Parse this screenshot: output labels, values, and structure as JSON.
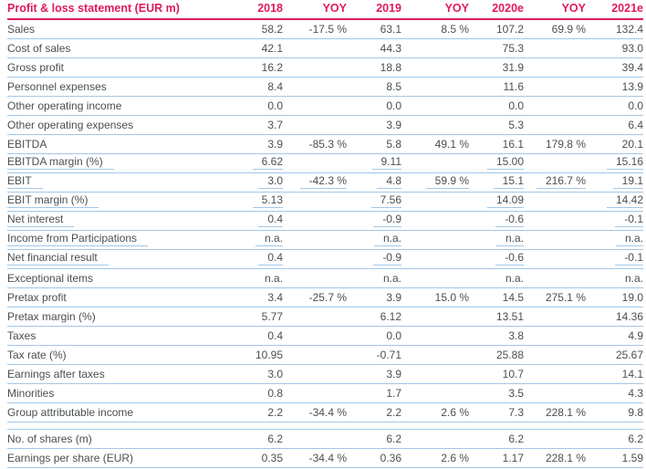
{
  "table": {
    "title": "Profit & loss statement (EUR m)",
    "columns": [
      "2018",
      "YOY",
      "2019",
      "YOY",
      "2020e",
      "YOY",
      "2021e"
    ],
    "colors": {
      "accent": "#e0195c",
      "text": "#4a4f52",
      "line": "#a2c7e7"
    },
    "rows": [
      {
        "label": "Sales",
        "values": [
          "58.2",
          "-17.5 %",
          "63.1",
          "8.5 %",
          "107.2",
          "69.9 %",
          "132.4"
        ],
        "underline": false,
        "section": 1
      },
      {
        "label": "Cost of sales",
        "values": [
          "42.1",
          "",
          "44.3",
          "",
          "75.3",
          "",
          "93.0"
        ],
        "underline": false,
        "section": 1
      },
      {
        "label": "Gross profit",
        "values": [
          "16.2",
          "",
          "18.8",
          "",
          "31.9",
          "",
          "39.4"
        ],
        "underline": false,
        "section": 1
      },
      {
        "label": "Personnel expenses",
        "values": [
          "8.4",
          "",
          "8.5",
          "",
          "11.6",
          "",
          "13.9"
        ],
        "underline": false,
        "section": 1
      },
      {
        "label": "Other operating income",
        "values": [
          "0.0",
          "",
          "0.0",
          "",
          "0.0",
          "",
          "0.0"
        ],
        "underline": false,
        "section": 1
      },
      {
        "label": "Other operating expenses",
        "values": [
          "3.7",
          "",
          "3.9",
          "",
          "5.3",
          "",
          "6.4"
        ],
        "underline": false,
        "section": 1
      },
      {
        "label": "EBITDA",
        "values": [
          "3.9",
          "-85.3 %",
          "5.8",
          "49.1 %",
          "16.1",
          "179.8 %",
          "20.1"
        ],
        "underline": false,
        "section": 1
      },
      {
        "label": "EBITDA margin (%)",
        "values": [
          "6.62",
          "",
          "9.11",
          "",
          "15.00",
          "",
          "15.16"
        ],
        "underline": true,
        "section": 1
      },
      {
        "label": "EBIT",
        "values": [
          "3.0",
          "-42.3 %",
          "4.8",
          "59.9 %",
          "15.1",
          "216.7 %",
          "19.1"
        ],
        "underline": true,
        "section": 1
      },
      {
        "label": "EBIT margin (%)",
        "values": [
          "5.13",
          "",
          "7.56",
          "",
          "14.09",
          "",
          "14.42"
        ],
        "underline": true,
        "section": 1
      },
      {
        "label": "Net interest",
        "values": [
          "0.4",
          "",
          "-0.9",
          "",
          "-0.6",
          "",
          "-0.1"
        ],
        "underline": true,
        "section": 1
      },
      {
        "label": "Income from Participations",
        "values": [
          "n.a.",
          "",
          "n.a.",
          "",
          "n.a.",
          "",
          "n.a."
        ],
        "underline": true,
        "section": 1
      },
      {
        "label": "Net financial result",
        "values": [
          "0.4",
          "",
          "-0.9",
          "",
          "-0.6",
          "",
          "-0.1"
        ],
        "underline": true,
        "section": 1
      },
      {
        "label": "Exceptional items",
        "values": [
          "n.a.",
          "",
          "n.a.",
          "",
          "n.a.",
          "",
          "n.a."
        ],
        "underline": false,
        "section": 1
      },
      {
        "label": "Pretax profit",
        "values": [
          "3.4",
          "-25.7 %",
          "3.9",
          "15.0 %",
          "14.5",
          "275.1 %",
          "19.0"
        ],
        "underline": false,
        "section": 1
      },
      {
        "label": "Pretax margin (%)",
        "values": [
          "5.77",
          "",
          "6.12",
          "",
          "13.51",
          "",
          "14.36"
        ],
        "underline": false,
        "section": 1
      },
      {
        "label": "Taxes",
        "values": [
          "0.4",
          "",
          "0.0",
          "",
          "3.8",
          "",
          "4.9"
        ],
        "underline": false,
        "section": 1
      },
      {
        "label": "Tax rate (%)",
        "values": [
          "10.95",
          "",
          "-0.71",
          "",
          "25.88",
          "",
          "25.67"
        ],
        "underline": false,
        "section": 1
      },
      {
        "label": "Earnings after taxes",
        "values": [
          "3.0",
          "",
          "3.9",
          "",
          "10.7",
          "",
          "14.1"
        ],
        "underline": false,
        "section": 1
      },
      {
        "label": "Minorities",
        "values": [
          "0.8",
          "",
          "1.7",
          "",
          "3.5",
          "",
          "4.3"
        ],
        "underline": false,
        "section": 1
      },
      {
        "label": "Group attributable income",
        "values": [
          "2.2",
          "-34.4 %",
          "2.2",
          "2.6 %",
          "7.3",
          "228.1 %",
          "9.8"
        ],
        "underline": false,
        "section": 1
      },
      {
        "label": "No. of shares (m)",
        "values": [
          "6.2",
          "",
          "6.2",
          "",
          "6.2",
          "",
          "6.2"
        ],
        "underline": false,
        "section": 2
      },
      {
        "label": "Earnings per share (EUR)",
        "values": [
          "0.35",
          "-34.4 %",
          "0.36",
          "2.6 %",
          "1.17",
          "228.1 %",
          "1.59"
        ],
        "underline": false,
        "section": 2
      }
    ]
  }
}
